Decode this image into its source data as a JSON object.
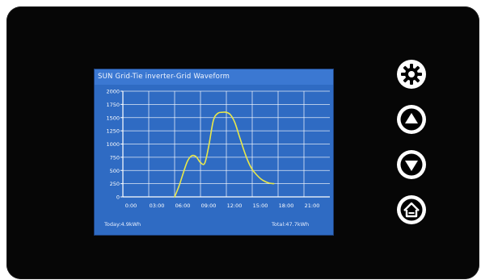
{
  "screen": {
    "title": "SUN Grid-Tie inverter-Grid Waveform",
    "today_label": "Today:4.9kWh",
    "total_label": "Total:47.7kWh"
  },
  "buttons": [
    {
      "name": "settings-button",
      "icon": "gear-icon"
    },
    {
      "name": "up-button",
      "icon": "triangle-up-icon"
    },
    {
      "name": "down-button",
      "icon": "triangle-down-icon"
    },
    {
      "name": "home-button",
      "icon": "home-icon"
    }
  ],
  "colors": {
    "bezel": "#060606",
    "screen_bg": "#2f6bc3",
    "title_bg": "#3b78d2",
    "grid": "#ffffff",
    "line": "#e8e84a"
  },
  "chart_data": {
    "type": "line",
    "title": "SUN Grid-Tie inverter-Grid Waveform",
    "xlabel": "",
    "ylabel": "",
    "x_ticks": [
      "0:00",
      "03:00",
      "06:00",
      "09:00",
      "12:00",
      "15:00",
      "18:00",
      "21:00"
    ],
    "y_ticks": [
      "0",
      "250",
      "500",
      "750",
      "1000",
      "1250",
      "1500",
      "1750",
      "2000"
    ],
    "xlim": [
      0,
      24
    ],
    "ylim": [
      0,
      2000
    ],
    "grid": true,
    "series": [
      {
        "x": [
          6.0,
          6.5,
          7.0,
          7.5,
          8.0,
          8.5,
          9.0,
          9.5,
          10.0,
          10.5,
          11.0,
          11.5,
          12.0,
          12.5,
          13.0,
          13.5,
          14.0,
          14.5,
          15.0,
          15.5,
          16.0,
          16.5,
          17.0,
          17.5
        ],
        "y": [
          0,
          200,
          450,
          680,
          780,
          760,
          650,
          640,
          1000,
          1450,
          1580,
          1600,
          1600,
          1550,
          1400,
          1150,
          900,
          680,
          520,
          420,
          340,
          290,
          260,
          250
        ]
      }
    ]
  }
}
